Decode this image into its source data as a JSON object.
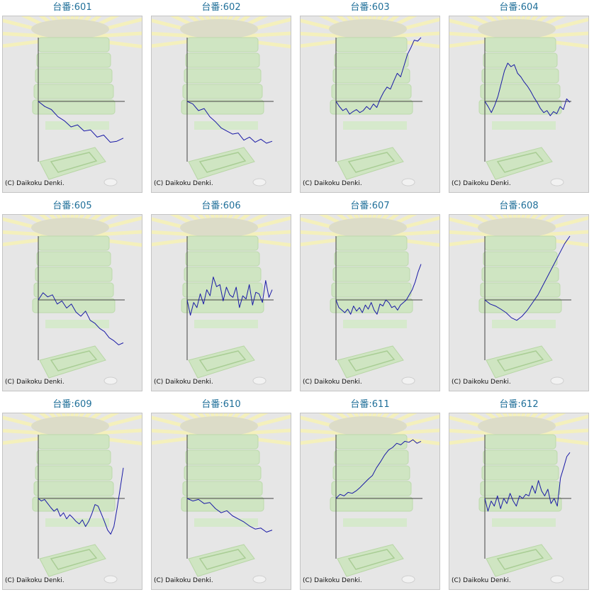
{
  "copyright": "(C) Daikoku Denki.",
  "colors": {
    "line": "#1a1aa6",
    "axis": "#444444",
    "title": "#1f6f99",
    "panel": "#e6e6e6"
  },
  "chart_data": [
    {
      "type": "line",
      "title": "台番:601",
      "y": [
        0,
        -10,
        -16,
        -30,
        -38,
        -50,
        -46,
        -58,
        -56,
        -70,
        -66,
        -80,
        -78,
        -72
      ]
    },
    {
      "type": "line",
      "title": "台番:602",
      "y": [
        0,
        -5,
        -18,
        -14,
        -30,
        -40,
        -52,
        -58,
        -64,
        -62,
        -76,
        -70,
        -80,
        -74,
        -82,
        -78
      ]
    },
    {
      "type": "line",
      "title": "台番:603",
      "y": [
        0,
        -10,
        -18,
        -14,
        -25,
        -20,
        -16,
        -22,
        -18,
        -10,
        -16,
        -5,
        -12,
        5,
        18,
        28,
        24,
        40,
        55,
        48,
        70,
        92,
        105,
        120,
        118,
        125
      ]
    },
    {
      "type": "line",
      "title": "台番:604",
      "y": [
        0,
        -10,
        -22,
        -8,
        10,
        35,
        60,
        75,
        68,
        72,
        55,
        48,
        38,
        30,
        20,
        8,
        -2,
        -14,
        -22,
        -18,
        -28,
        -20,
        -24,
        -10,
        -16,
        5,
        -2
      ]
    },
    {
      "type": "line",
      "title": "台番:605",
      "y": [
        0,
        14,
        6,
        10,
        -8,
        -2,
        -16,
        -8,
        -24,
        -32,
        -22,
        -40,
        -46,
        -56,
        -62,
        -74,
        -80,
        -88,
        -84
      ]
    },
    {
      "type": "line",
      "title": "台番:606",
      "y": [
        0,
        -30,
        -5,
        -15,
        12,
        -8,
        20,
        8,
        45,
        26,
        30,
        -2,
        25,
        10,
        5,
        25,
        -15,
        8,
        2,
        30,
        -10,
        15,
        12,
        -5,
        38,
        5,
        20
      ]
    },
    {
      "type": "line",
      "title": "台番:607",
      "y": [
        0,
        -15,
        -20,
        -25,
        -18,
        -28,
        -12,
        -22,
        -15,
        -25,
        -10,
        -18,
        -5,
        -20,
        -28,
        -8,
        -12,
        0,
        -5,
        -15,
        -12,
        -20,
        -10,
        -5,
        0,
        10,
        20,
        35,
        55,
        70
      ]
    },
    {
      "type": "line",
      "title": "台番:608",
      "y": [
        0,
        -8,
        -12,
        -18,
        -25,
        -35,
        -40,
        -32,
        -20,
        -5,
        10,
        30,
        50,
        70,
        90,
        110,
        125
      ]
    },
    {
      "type": "line",
      "title": "台番:609",
      "y": [
        0,
        -5,
        -2,
        -10,
        -18,
        -25,
        -20,
        -35,
        -28,
        -40,
        -32,
        -38,
        -45,
        -50,
        -42,
        -55,
        -45,
        -30,
        -12,
        -15,
        -30,
        -45,
        -62,
        -70,
        -55,
        -20,
        20,
        60
      ]
    },
    {
      "type": "line",
      "title": "台番:610",
      "y": [
        0,
        -5,
        -2,
        -10,
        -8,
        -20,
        -28,
        -24,
        -34,
        -40,
        -46,
        -54,
        -60,
        -58,
        -66,
        -62
      ]
    },
    {
      "type": "line",
      "title": "台番:611",
      "y": [
        0,
        8,
        5,
        12,
        10,
        15,
        22,
        30,
        38,
        45,
        60,
        72,
        85,
        95,
        100,
        108,
        105,
        112,
        110,
        115,
        108,
        112
      ]
    },
    {
      "type": "line",
      "title": "台番:612",
      "y": [
        0,
        -25,
        -5,
        -15,
        5,
        -20,
        0,
        -10,
        10,
        -5,
        -15,
        5,
        0,
        8,
        5,
        25,
        10,
        35,
        15,
        5,
        18,
        -10,
        0,
        -15,
        40,
        60,
        82,
        90
      ]
    }
  ]
}
